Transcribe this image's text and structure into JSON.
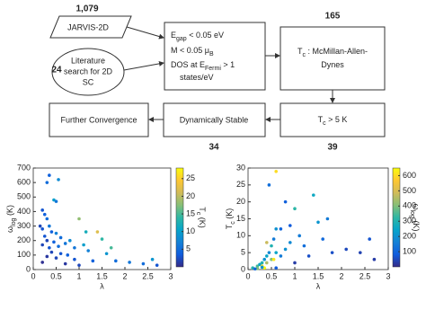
{
  "flowchart": {
    "jarvis_count": "1,079",
    "jarvis": "JARVIS-2D",
    "literature_count": "24",
    "literature": [
      "Literature",
      "search for 2D",
      "SC"
    ],
    "criteria": [
      [
        "E",
        "gap",
        " < 0.05 eV"
      ],
      [
        "M < 0.05 μ",
        "B",
        ""
      ],
      [
        "DOS at E",
        "Fermi",
        " > 1"
      ],
      [
        "states/eV"
      ]
    ],
    "mcmillan_count": "165",
    "mcmillan": [
      [
        "T",
        "c",
        " : McMillan-Allen-"
      ],
      [
        "Dynes"
      ]
    ],
    "tc_count": "39",
    "tc": [
      "T",
      "c",
      " > 5 K"
    ],
    "stable_count": "34",
    "stable": "Dynamically Stable",
    "convergence": "Further Convergence"
  },
  "chart_data": [
    {
      "type": "scatter",
      "xlabel": "λ",
      "ylabel": [
        "ω",
        "log",
        " (K)"
      ],
      "colorbar_label": [
        "T",
        "c",
        " (K)"
      ],
      "xlim": [
        0,
        3
      ],
      "xticks": [
        0,
        0.5,
        1,
        1.5,
        2,
        2.5,
        3
      ],
      "ylim": [
        0,
        700
      ],
      "yticks": [
        0,
        100,
        200,
        300,
        400,
        500,
        600,
        700
      ],
      "clim": [
        0,
        28
      ],
      "cticks": [
        5,
        10,
        15,
        20,
        25
      ],
      "colormap": [
        "#352a87",
        "#0f5cdd",
        "#1481d6",
        "#06a4ca",
        "#2eb7a4",
        "#87bf77",
        "#d1bb59",
        "#fec832",
        "#f9fb0e"
      ],
      "x": [
        0.3,
        0.35,
        0.55,
        0.45,
        0.5,
        0.2,
        0.25,
        0.3,
        0.15,
        0.2,
        0.35,
        0.4,
        0.25,
        0.5,
        0.6,
        0.3,
        0.45,
        0.7,
        0.2,
        0.35,
        0.55,
        0.8,
        1.0,
        1.15,
        0.9,
        1.2,
        0.4,
        0.6,
        0.75,
        1.1,
        1.4,
        1.6,
        1.5,
        0.3,
        0.5,
        0.9,
        1.3,
        1.8,
        2.1,
        2.4,
        2.7,
        2.6,
        1.7,
        0.7,
        1.0,
        0.2
      ],
      "y": [
        600,
        650,
        620,
        480,
        470,
        410,
        380,
        350,
        300,
        280,
        300,
        260,
        230,
        250,
        220,
        200,
        190,
        180,
        170,
        150,
        160,
        200,
        350,
        260,
        150,
        130,
        120,
        110,
        100,
        170,
        260,
        110,
        210,
        90,
        80,
        70,
        60,
        60,
        50,
        40,
        30,
        70,
        150,
        40,
        30,
        50
      ],
      "c": [
        5,
        4,
        8,
        10,
        6,
        3,
        4,
        5,
        2,
        3,
        6,
        4,
        3,
        7,
        5,
        2,
        4,
        6,
        2,
        3,
        5,
        8,
        18,
        12,
        6,
        7,
        2,
        3,
        4,
        10,
        22,
        9,
        14,
        1,
        2,
        3,
        4,
        5,
        6,
        5,
        3,
        9,
        15,
        1,
        2,
        0.5
      ]
    },
    {
      "type": "scatter",
      "xlabel": "λ",
      "ylabel": [
        "T",
        "c",
        " (K)"
      ],
      "colorbar_label": [
        "ω",
        "log",
        " (K)"
      ],
      "xlim": [
        0,
        3
      ],
      "xticks": [
        0,
        0.5,
        1,
        1.5,
        2,
        2.5,
        3
      ],
      "ylim": [
        0,
        30
      ],
      "yticks": [
        0,
        5,
        10,
        15,
        20,
        25,
        30
      ],
      "clim": [
        0,
        650
      ],
      "cticks": [
        100,
        200,
        300,
        400,
        500,
        600
      ],
      "colormap": [
        "#352a87",
        "#0f5cdd",
        "#1481d6",
        "#06a4ca",
        "#2eb7a4",
        "#87bf77",
        "#d1bb59",
        "#fec832",
        "#f9fb0e"
      ],
      "x": [
        0.1,
        0.2,
        0.25,
        0.3,
        0.35,
        0.4,
        0.45,
        0.5,
        0.55,
        0.6,
        0.5,
        0.4,
        0.6,
        0.7,
        0.8,
        0.9,
        1.0,
        1.1,
        1.2,
        1.4,
        1.5,
        1.6,
        1.7,
        0.7,
        0.8,
        0.45,
        0.6,
        0.9,
        1.3,
        1.8,
        2.1,
        2.4,
        2.7,
        2.6,
        0.3,
        0.35,
        0.55,
        0.2,
        0.3,
        0.15,
        0.6,
        1.0,
        0.4
      ],
      "y": [
        0.5,
        1,
        1.5,
        2,
        3,
        4,
        5,
        7,
        9,
        12,
        3,
        2,
        5,
        4,
        6,
        8,
        18,
        10,
        7,
        22,
        14,
        9,
        15,
        12,
        20,
        25,
        29,
        13,
        4,
        5,
        6,
        5,
        3,
        9,
        1,
        0.5,
        3,
        0.3,
        0.7,
        0.2,
        0.5,
        2,
        8
      ],
      "c": [
        300,
        350,
        250,
        300,
        200,
        250,
        180,
        300,
        150,
        200,
        400,
        450,
        250,
        150,
        200,
        180,
        320,
        150,
        120,
        260,
        210,
        110,
        150,
        100,
        90,
        120,
        600,
        80,
        60,
        60,
        50,
        40,
        30,
        70,
        600,
        650,
        620,
        400,
        200,
        100,
        80,
        30,
        480
      ]
    }
  ]
}
